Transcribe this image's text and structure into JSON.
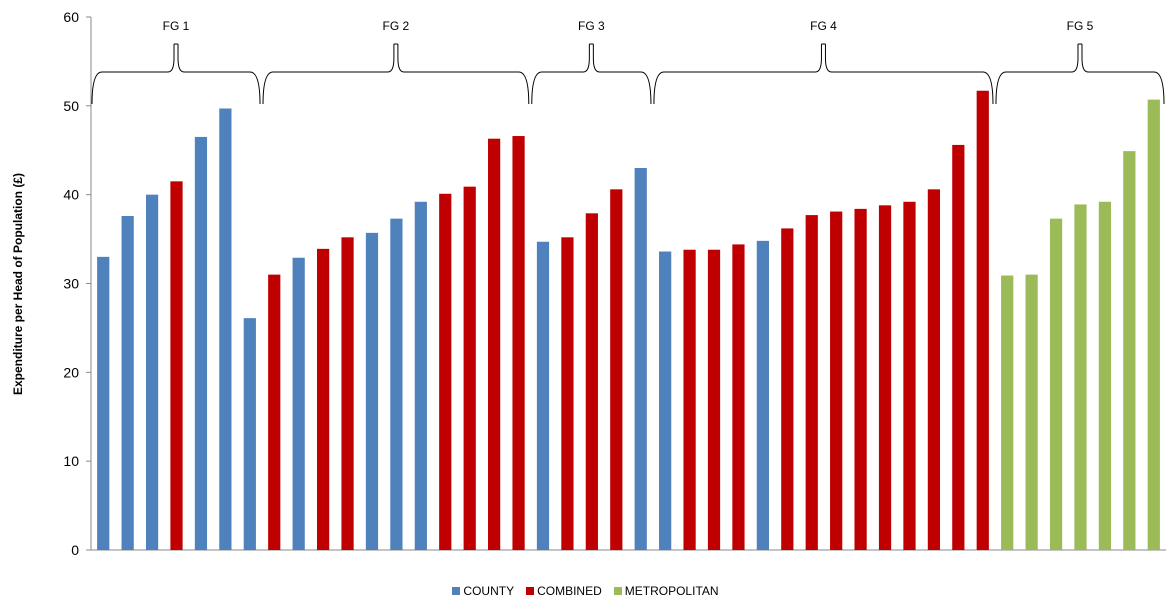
{
  "chart_data": {
    "type": "bar",
    "ylabel": "Expenditure per Head of Population (£)",
    "xlabel": "",
    "ylim": [
      0,
      60
    ],
    "yticks": [
      "0",
      "10",
      "20",
      "30",
      "40",
      "50",
      "60"
    ],
    "colors": {
      "COUNTY": "#4f81bd",
      "COMBINED": "#c00000",
      "METROPOLITAN": "#9bbb59"
    },
    "legend": [
      "COUNTY",
      "COMBINED",
      "METROPOLITAN"
    ],
    "legend_position": "bottom",
    "groups": [
      {
        "label": "FG 1",
        "first_bar": 0,
        "last_bar": 6
      },
      {
        "label": "FG 2",
        "first_bar": 7,
        "last_bar": 17
      },
      {
        "label": "FG 3",
        "first_bar": 18,
        "last_bar": 22
      },
      {
        "label": "FG 4",
        "first_bar": 23,
        "last_bar": 36
      },
      {
        "label": "FG 5",
        "first_bar": 37,
        "last_bar": 43
      }
    ],
    "bars": [
      {
        "value": 33.0,
        "type": "COUNTY"
      },
      {
        "value": 37.6,
        "type": "COUNTY"
      },
      {
        "value": 40.0,
        "type": "COUNTY"
      },
      {
        "value": 41.5,
        "type": "COMBINED"
      },
      {
        "value": 46.5,
        "type": "COUNTY"
      },
      {
        "value": 49.7,
        "type": "COUNTY"
      },
      {
        "value": 26.1,
        "type": "COUNTY"
      },
      {
        "value": 31.0,
        "type": "COMBINED"
      },
      {
        "value": 32.9,
        "type": "COUNTY"
      },
      {
        "value": 33.9,
        "type": "COMBINED"
      },
      {
        "value": 35.2,
        "type": "COMBINED"
      },
      {
        "value": 35.7,
        "type": "COUNTY"
      },
      {
        "value": 37.3,
        "type": "COUNTY"
      },
      {
        "value": 39.2,
        "type": "COUNTY"
      },
      {
        "value": 40.1,
        "type": "COMBINED"
      },
      {
        "value": 40.9,
        "type": "COMBINED"
      },
      {
        "value": 46.3,
        "type": "COMBINED"
      },
      {
        "value": 46.6,
        "type": "COMBINED"
      },
      {
        "value": 34.7,
        "type": "COUNTY"
      },
      {
        "value": 35.2,
        "type": "COMBINED"
      },
      {
        "value": 37.9,
        "type": "COMBINED"
      },
      {
        "value": 40.6,
        "type": "COMBINED"
      },
      {
        "value": 43.0,
        "type": "COUNTY"
      },
      {
        "value": 33.6,
        "type": "COUNTY"
      },
      {
        "value": 33.8,
        "type": "COMBINED"
      },
      {
        "value": 33.8,
        "type": "COMBINED"
      },
      {
        "value": 34.4,
        "type": "COMBINED"
      },
      {
        "value": 34.8,
        "type": "COUNTY"
      },
      {
        "value": 36.2,
        "type": "COMBINED"
      },
      {
        "value": 37.7,
        "type": "COMBINED"
      },
      {
        "value": 38.1,
        "type": "COMBINED"
      },
      {
        "value": 38.4,
        "type": "COMBINED"
      },
      {
        "value": 38.8,
        "type": "COMBINED"
      },
      {
        "value": 39.2,
        "type": "COMBINED"
      },
      {
        "value": 40.6,
        "type": "COMBINED"
      },
      {
        "value": 45.6,
        "type": "COMBINED"
      },
      {
        "value": 51.7,
        "type": "COMBINED"
      },
      {
        "value": 30.9,
        "type": "METROPOLITAN"
      },
      {
        "value": 31.0,
        "type": "METROPOLITAN"
      },
      {
        "value": 37.3,
        "type": "METROPOLITAN"
      },
      {
        "value": 38.9,
        "type": "METROPOLITAN"
      },
      {
        "value": 39.2,
        "type": "METROPOLITAN"
      },
      {
        "value": 44.9,
        "type": "METROPOLITAN"
      },
      {
        "value": 50.7,
        "type": "METROPOLITAN"
      }
    ]
  }
}
